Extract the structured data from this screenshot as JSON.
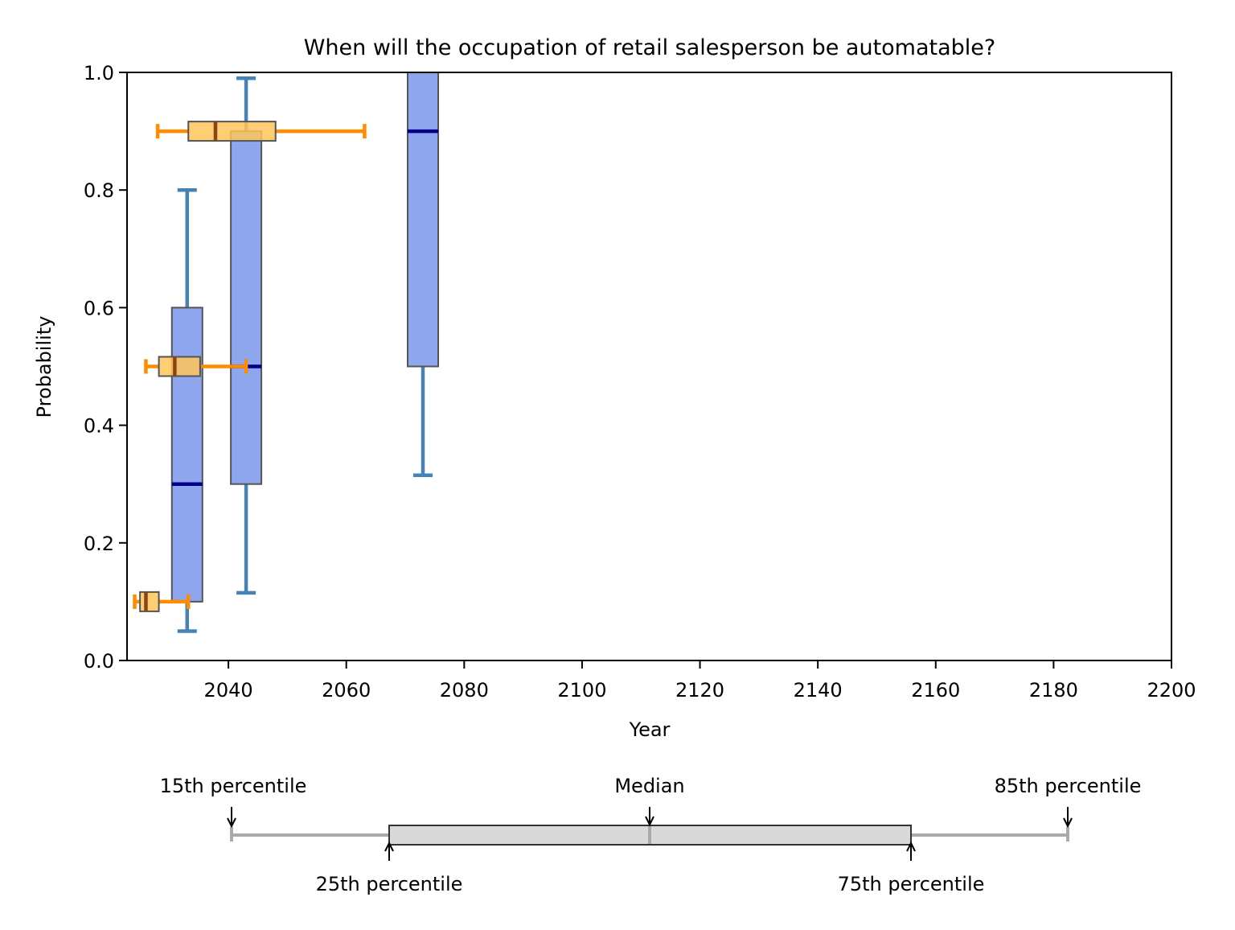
{
  "chart_data": {
    "type": "box",
    "title": "When will the occupation of retail salesperson be automatable?",
    "xlabel": "Year",
    "ylabel": "Probability",
    "xlim": [
      2022.8,
      2200
    ],
    "ylim": [
      0.0,
      1.0
    ],
    "xticks": [
      "2040",
      "2060",
      "2080",
      "2100",
      "2120",
      "2140",
      "2160",
      "2180",
      "2200"
    ],
    "yticks": [
      "0.0",
      "0.2",
      "0.4",
      "0.6",
      "0.8",
      "1.0"
    ],
    "grid": false,
    "vertical_boxes_probability_by_year": [
      {
        "year": 2033,
        "p15": 0.05,
        "p25": 0.1,
        "median": 0.3,
        "p75": 0.6,
        "p85": 0.8
      },
      {
        "year": 2043,
        "p15": 0.115,
        "p25": 0.3,
        "median": 0.5,
        "p75": 0.9,
        "p85": 0.99
      },
      {
        "year": 2073,
        "p15": 0.315,
        "p25": 0.5,
        "median": 0.9,
        "p75": 1.0,
        "p85": 1.0
      }
    ],
    "horizontal_boxes_year_by_probability": [
      {
        "probability": 0.1,
        "p15": 2024.1,
        "p25": 2025.0,
        "median": 2026.0,
        "p75": 2028.2,
        "p85": 2033.2
      },
      {
        "probability": 0.5,
        "p15": 2026.0,
        "p25": 2028.2,
        "median": 2030.9,
        "p75": 2035.2,
        "p85": 2043.0
      },
      {
        "probability": 0.9,
        "p15": 2028.0,
        "p25": 2033.2,
        "median": 2037.8,
        "p75": 2048.0,
        "p85": 2063.1
      }
    ],
    "colors": {
      "vertical_box_fill": "#8da6ee",
      "vertical_whisker": "#4682b4",
      "vertical_median": "#00008b",
      "horizontal_box_fill": "#ffc65a",
      "horizontal_whisker": "#ff8c00",
      "horizontal_median": "#8b4513"
    }
  },
  "legend": {
    "p15": "15th percentile",
    "p25": "25th percentile",
    "median": "Median",
    "p75": "75th percentile",
    "p85": "85th percentile"
  }
}
